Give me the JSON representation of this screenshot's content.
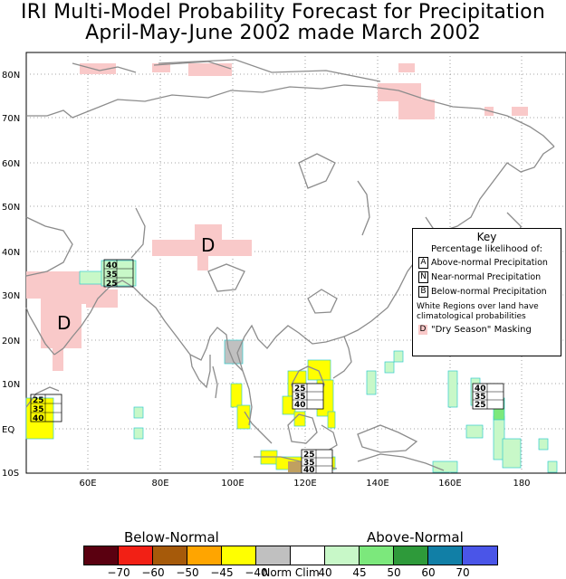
{
  "title": {
    "line1": "IRI Multi-Model Probability Forecast for Precipitation",
    "line2": "April-May-June 2002 made March 2002"
  },
  "axes": {
    "lat_labels": [
      "80N",
      "70N",
      "60N",
      "50N",
      "40N",
      "30N",
      "20N",
      "10N",
      "EQ",
      "10S"
    ],
    "lon_labels": [
      "60E",
      "80E",
      "100E",
      "120E",
      "140E",
      "160E",
      "180"
    ]
  },
  "key": {
    "title": "Key",
    "subtitle": "Percentage likelihood of:",
    "rows": [
      {
        "letter": "A",
        "label": "Above-normal Precipitation"
      },
      {
        "letter": "N",
        "label": "Near-normal Precipitation"
      },
      {
        "letter": "B",
        "label": "Below-normal Precipitation"
      }
    ],
    "note": "White Regions over land have climatological probabilities",
    "dry_letter": "D",
    "dry_label": "\"Dry Season\" Masking"
  },
  "map_labels": {
    "dry_marker": "D",
    "probability_boxes": [
      {
        "region": "central-asia",
        "values": [
          "40",
          "35",
          "25"
        ]
      },
      {
        "region": "east-africa",
        "values": [
          "25",
          "35",
          "40"
        ]
      },
      {
        "region": "philippines",
        "values": [
          "25",
          "35",
          "40"
        ]
      },
      {
        "region": "indonesia",
        "values": [
          "25",
          "35",
          "40"
        ]
      },
      {
        "region": "pacific",
        "values": [
          "40",
          "35",
          "25"
        ]
      }
    ]
  },
  "legend": {
    "below_label": "Below-Normal",
    "above_label": "Above-Normal",
    "colors": [
      "#5a0010",
      "#f22015",
      "#a65a0a",
      "#ffa500",
      "#ffff00",
      "#c0c0c0",
      "#ffffff",
      "#c8f8c8",
      "#7ce87c",
      "#2e9a3a",
      "#117fa6",
      "#4a55e8"
    ],
    "ticks": [
      "−70",
      "−60",
      "−50",
      "−45",
      "−40",
      "Norm Clim",
      "40",
      "45",
      "50",
      "60",
      "70"
    ]
  }
}
